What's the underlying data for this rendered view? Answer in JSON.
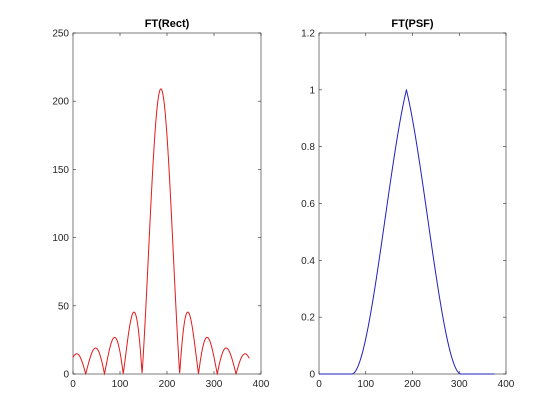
{
  "chart_data": [
    {
      "type": "line",
      "title": "FT(Rect)",
      "xlabel": "",
      "ylabel": "",
      "xlim": [
        0,
        400
      ],
      "ylim": [
        0,
        250
      ],
      "x_ticks": [
        0,
        100,
        200,
        300,
        400
      ],
      "y_ticks": [
        0,
        50,
        100,
        150,
        200,
        250
      ],
      "grid": false,
      "legend": "none",
      "color": "#e31a1c",
      "curve": {
        "kind": "abs_sinc",
        "center": 187,
        "peak": 209,
        "zero_spacing": 40,
        "x_range": [
          0,
          375
        ]
      }
    },
    {
      "type": "line",
      "title": "FT(PSF)",
      "xlabel": "",
      "ylabel": "",
      "xlim": [
        0,
        400
      ],
      "ylim": [
        0,
        1.2
      ],
      "x_ticks": [
        0,
        100,
        200,
        300,
        400
      ],
      "y_ticks": [
        0,
        0.2,
        0.4,
        0.6,
        0.8,
        1,
        1.2
      ],
      "grid": false,
      "legend": "none",
      "color": "#1f1fbf",
      "curve": {
        "kind": "triangle_smooth",
        "center": 187,
        "peak": 1,
        "half_width": 117,
        "x_range": [
          0,
          375
        ]
      }
    }
  ]
}
